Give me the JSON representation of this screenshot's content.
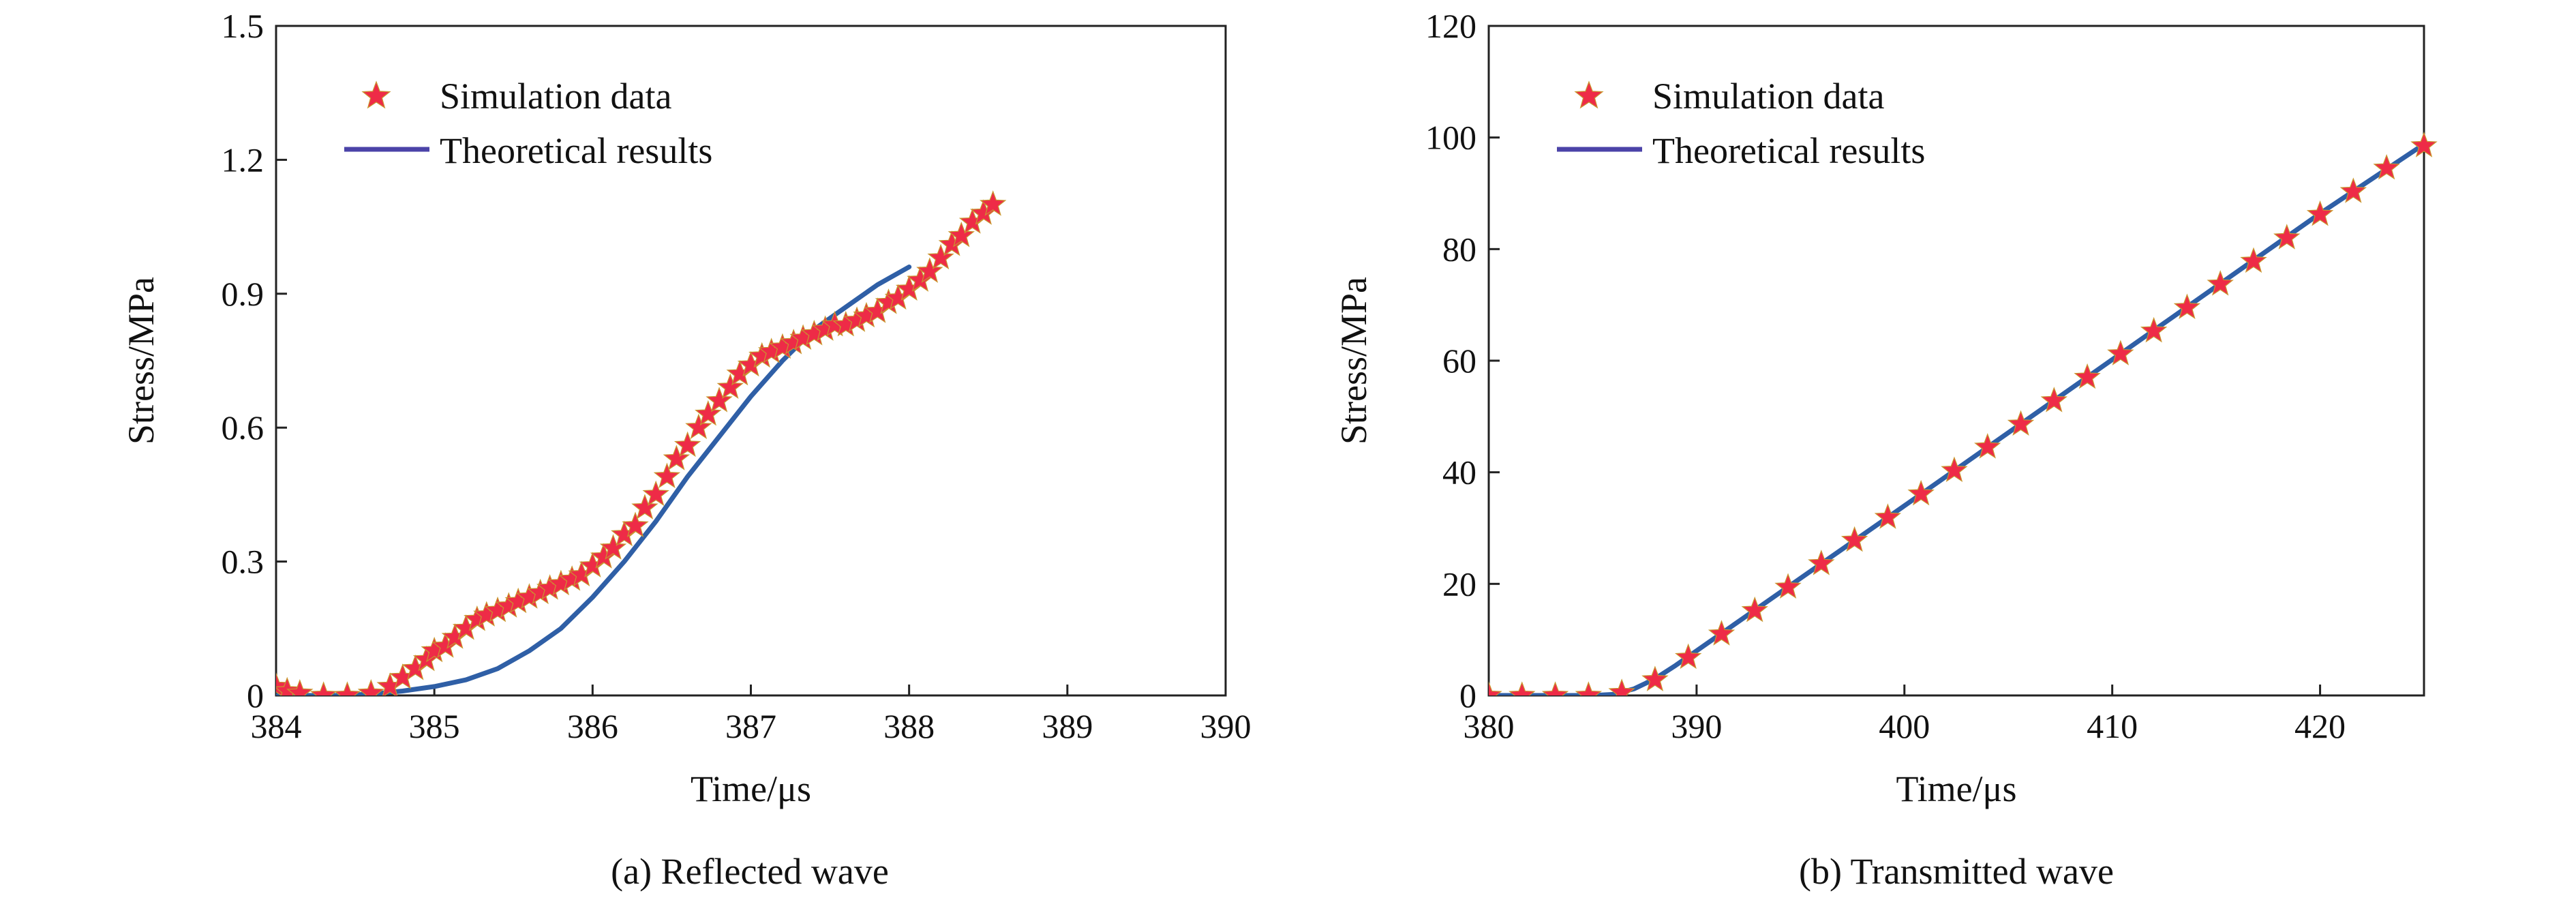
{
  "colors": {
    "simulation_star": "#ee2b47",
    "theory_line": "#2f5fa6",
    "legend_line": "#4b43a8",
    "axis": "#222222"
  },
  "chart_data": [
    {
      "type": "scatter+line",
      "caption": "(a) Reflected wave",
      "xlabel": "Time/μs",
      "ylabel": "Stress/MPa",
      "xlim": [
        384,
        390
      ],
      "ylim": [
        0,
        1.5
      ],
      "xticks": [
        "384",
        "385",
        "386",
        "387",
        "388",
        "389",
        "390"
      ],
      "yticks": [
        "0",
        "0.3",
        "0.6",
        "0.9",
        "1.2",
        "1.5"
      ],
      "legend_position": "top-left",
      "series": [
        {
          "name": "Simulation data",
          "kind": "scatter",
          "marker": "star-icon",
          "x": [
            384.0,
            384.07,
            384.15,
            384.3,
            384.45,
            384.6,
            384.72,
            384.8,
            384.88,
            384.95,
            385.0,
            385.07,
            385.13,
            385.2,
            385.27,
            385.33,
            385.4,
            385.47,
            385.53,
            385.6,
            385.67,
            385.73,
            385.8,
            385.87,
            385.93,
            386.0,
            386.07,
            386.13,
            386.2,
            386.27,
            386.33,
            386.4,
            386.47,
            386.53,
            386.6,
            386.67,
            386.73,
            386.8,
            386.87,
            386.93,
            387.0,
            387.07,
            387.13,
            387.2,
            387.27,
            387.33,
            387.4,
            387.47,
            387.53,
            387.6,
            387.67,
            387.73,
            387.8,
            387.87,
            387.93,
            388.0,
            388.07,
            388.13,
            388.2,
            388.27,
            388.33,
            388.4,
            388.47,
            388.53
          ],
          "y": [
            0.02,
            0.01,
            0.005,
            0.0,
            0.0,
            0.005,
            0.02,
            0.04,
            0.06,
            0.08,
            0.1,
            0.11,
            0.13,
            0.15,
            0.17,
            0.18,
            0.19,
            0.2,
            0.21,
            0.22,
            0.23,
            0.24,
            0.25,
            0.26,
            0.27,
            0.29,
            0.31,
            0.33,
            0.36,
            0.38,
            0.42,
            0.45,
            0.49,
            0.53,
            0.56,
            0.6,
            0.63,
            0.66,
            0.69,
            0.72,
            0.74,
            0.76,
            0.77,
            0.78,
            0.79,
            0.8,
            0.81,
            0.82,
            0.83,
            0.83,
            0.84,
            0.85,
            0.86,
            0.88,
            0.89,
            0.91,
            0.93,
            0.95,
            0.98,
            1.01,
            1.03,
            1.06,
            1.08,
            1.1
          ]
        },
        {
          "name": "Theoretical results",
          "kind": "line",
          "x": [
            384.0,
            384.2,
            384.4,
            384.6,
            384.8,
            385.0,
            385.2,
            385.4,
            385.6,
            385.8,
            386.0,
            386.2,
            386.4,
            386.6,
            386.8,
            387.0,
            387.2,
            387.4,
            387.6,
            387.8,
            388.0
          ],
          "y": [
            0.0,
            0.0,
            0.0,
            0.003,
            0.01,
            0.02,
            0.035,
            0.06,
            0.1,
            0.15,
            0.22,
            0.3,
            0.39,
            0.49,
            0.58,
            0.67,
            0.75,
            0.82,
            0.87,
            0.92,
            0.96
          ]
        }
      ]
    },
    {
      "type": "scatter+line",
      "caption": "(b) Transmitted wave",
      "xlabel": "Time/μs",
      "ylabel": "Stress/MPa",
      "xlim": [
        380,
        425
      ],
      "ylim": [
        0,
        120
      ],
      "xticks": [
        "380",
        "390",
        "400",
        "410",
        "420"
      ],
      "yticks": [
        "0",
        "20",
        "40",
        "60",
        "80",
        "100",
        "120"
      ],
      "legend_position": "top-left",
      "series": [
        {
          "name": "Simulation data",
          "kind": "scatter",
          "marker": "star-icon",
          "x": [
            380.0,
            381.6,
            383.2,
            384.8,
            386.4,
            388.0,
            389.6,
            391.2,
            392.8,
            394.4,
            396.0,
            397.6,
            399.2,
            400.8,
            402.4,
            404.0,
            405.6,
            407.2,
            408.8,
            410.4,
            412.0,
            413.6,
            415.2,
            416.8,
            418.4,
            420.0,
            421.6,
            423.2,
            425.0
          ],
          "y": [
            0.0,
            0.0,
            0.0,
            0.0,
            0.5,
            2.8,
            6.8,
            11.0,
            15.2,
            19.4,
            23.6,
            27.8,
            31.9,
            36.1,
            40.3,
            44.5,
            48.6,
            52.8,
            57.0,
            61.2,
            65.3,
            69.5,
            73.7,
            77.8,
            82.0,
            86.2,
            90.3,
            94.5,
            98.5
          ]
        },
        {
          "name": "Theoretical results",
          "kind": "line",
          "x": [
            380.0,
            385.0,
            386.0,
            387.0,
            388.0,
            389.0,
            390.0,
            395.0,
            400.0,
            405.0,
            410.0,
            415.0,
            420.0,
            425.0
          ],
          "y": [
            0.0,
            0.0,
            0.2,
            1.2,
            3.0,
            5.4,
            8.0,
            21.0,
            34.0,
            47.1,
            60.2,
            73.3,
            86.4,
            98.8
          ]
        }
      ]
    }
  ]
}
